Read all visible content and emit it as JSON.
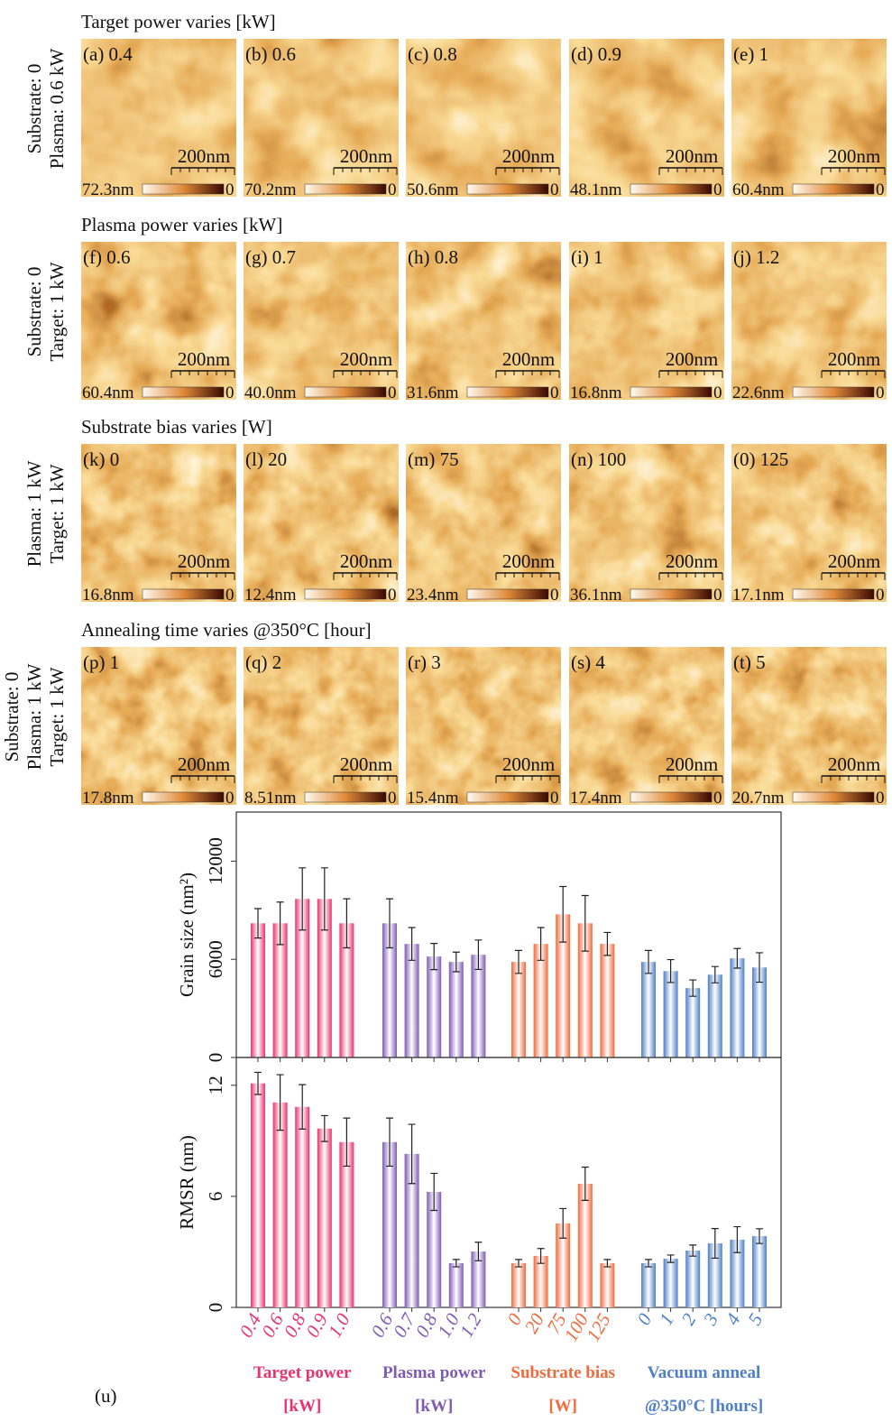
{
  "afm": {
    "scalebar": "200nm",
    "zero": "0",
    "rows": [
      {
        "title": "Target power varies [kW]",
        "side": [
          "Substrate: 0",
          "Plasma: 0.6 kW"
        ],
        "panels": [
          {
            "label": "(a) 0.4",
            "max": "72.3nm"
          },
          {
            "label": "(b) 0.6",
            "max": "70.2nm"
          },
          {
            "label": "(c) 0.8",
            "max": "50.6nm"
          },
          {
            "label": "(d) 0.9",
            "max": "48.1nm"
          },
          {
            "label": "(e) 1",
            "max": "60.4nm"
          }
        ]
      },
      {
        "title": "Plasma power varies [kW]",
        "side": [
          "Substrate: 0",
          "Target: 1 kW"
        ],
        "panels": [
          {
            "label": "(f) 0.6",
            "max": "60.4nm"
          },
          {
            "label": "(g) 0.7",
            "max": "40.0nm"
          },
          {
            "label": "(h) 0.8",
            "max": "31.6nm"
          },
          {
            "label": "(i) 1",
            "max": "16.8nm"
          },
          {
            "label": "(j) 1.2",
            "max": "22.6nm"
          }
        ]
      },
      {
        "title": "Substrate bias varies [W]",
        "side": [
          "Plasma: 1 kW",
          "Target: 1 kW"
        ],
        "panels": [
          {
            "label": "(k) 0",
            "max": "16.8nm"
          },
          {
            "label": "(l) 20",
            "max": "12.4nm"
          },
          {
            "label": "(m) 75",
            "max": "23.4nm"
          },
          {
            "label": "(n) 100",
            "max": "36.1nm"
          },
          {
            "label": "(0) 125",
            "max": "17.1nm"
          }
        ]
      },
      {
        "title": "Annealing time varies @350°C [hour]",
        "side": [
          "Substrate: 0",
          "Plasma: 1 kW",
          "Target: 1 kW"
        ],
        "panels": [
          {
            "label": "(p) 1",
            "max": "17.8nm"
          },
          {
            "label": "(q) 2",
            "max": "8.51nm"
          },
          {
            "label": "(r) 3",
            "max": "15.4nm"
          },
          {
            "label": "(s) 4",
            "max": "17.4nm"
          },
          {
            "label": "(t) 5",
            "max": "20.7nm"
          }
        ]
      }
    ]
  },
  "panel_label": "(u)",
  "chart_data": [
    {
      "type": "bar",
      "ylabel": "Grain size (nm²)",
      "ylim": [
        0,
        15000
      ],
      "yticks": [
        0,
        6000,
        12000
      ],
      "groups": [
        {
          "color": "#e8336e",
          "values": [
            8200,
            8200,
            9690,
            9690,
            8200
          ],
          "errors": [
            900,
            1300,
            1900,
            1900,
            1500
          ]
        },
        {
          "color": "#7f5bb5",
          "values": [
            8200,
            6940,
            6170,
            5840,
            6280
          ],
          "errors": [
            1500,
            1000,
            800,
            600,
            900
          ]
        },
        {
          "color": "#f06a3d",
          "values": [
            5840,
            6940,
            8750,
            8200,
            6940
          ],
          "errors": [
            700,
            1000,
            1700,
            1700,
            700
          ]
        },
        {
          "color": "#4f7fc6",
          "values": [
            5840,
            5280,
            4240,
            5060,
            6060,
            5500
          ],
          "errors": [
            700,
            700,
            500,
            500,
            600,
            900
          ]
        }
      ]
    },
    {
      "type": "bar",
      "ylabel": "RMSR (nm)",
      "ylim": [
        0,
        13.5
      ],
      "yticks": [
        0,
        6,
        12
      ],
      "groups": [
        {
          "name": "Target power",
          "unit": "[kW]",
          "color": "#e8336e",
          "categories": [
            "0.4",
            "0.6",
            "0.8",
            "0.9",
            "1.0"
          ],
          "values": [
            12.1,
            11.07,
            10.83,
            9.66,
            8.93
          ],
          "errors": [
            0.6,
            1.5,
            1.2,
            0.7,
            1.3
          ]
        },
        {
          "name": "Plasma power",
          "unit": "[kW]",
          "color": "#7f5bb5",
          "categories": [
            "0.6",
            "0.7",
            "0.8",
            "1.0",
            "1.2"
          ],
          "values": [
            8.93,
            8.29,
            6.24,
            2.39,
            3.02
          ],
          "errors": [
            1.3,
            1.6,
            1.0,
            0.2,
            0.5
          ]
        },
        {
          "name": "Substrate bias",
          "unit": "[W]",
          "color": "#f06a3d",
          "categories": [
            "0",
            "20",
            "75",
            "100",
            "125"
          ],
          "values": [
            2.39,
            2.78,
            4.54,
            6.68,
            2.39
          ],
          "errors": [
            0.2,
            0.4,
            0.8,
            0.9,
            0.2
          ]
        },
        {
          "name": "Vacuum anneal",
          "unit": "@350°C  [hours]",
          "color": "#4f7fc6",
          "categories": [
            "0",
            "1",
            "2",
            "3",
            "4",
            "5"
          ],
          "values": [
            2.39,
            2.63,
            3.07,
            3.46,
            3.66,
            3.85
          ],
          "errors": [
            0.2,
            0.2,
            0.3,
            0.8,
            0.7,
            0.4
          ]
        }
      ]
    }
  ]
}
